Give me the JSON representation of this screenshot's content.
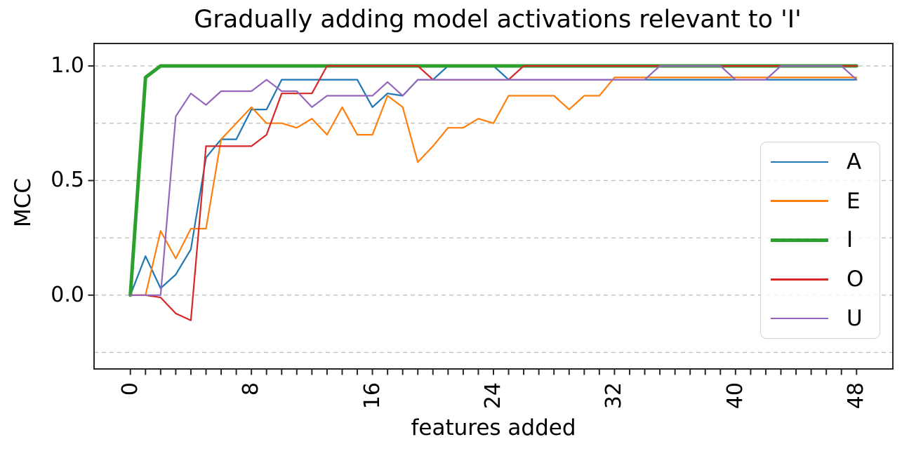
{
  "chart_data": {
    "type": "line",
    "title": "Gradually adding model activations relevant to 'I'",
    "xlabel": "features added",
    "ylabel": "MCC",
    "grid": "horizontal-dashed",
    "legend_position": "center-right",
    "xlim": [
      -2.4,
      50.4
    ],
    "ylim": [
      -0.322,
      1.098
    ],
    "xtick_labels": [
      "0",
      "8",
      "16",
      "24",
      "32",
      "40",
      "48"
    ],
    "xtick_values": [
      0,
      8,
      16,
      24,
      32,
      40,
      48
    ],
    "xticks_minor_every": 1,
    "ytick_labels": [
      "0.0",
      "0.5",
      "1.0"
    ],
    "ytick_values": [
      0,
      0.5,
      1.0
    ],
    "grid_values": [
      -0.25,
      0,
      0.25,
      0.5,
      0.75,
      1.0
    ],
    "x": [
      0,
      1,
      2,
      3,
      4,
      5,
      6,
      7,
      8,
      9,
      10,
      11,
      12,
      13,
      14,
      15,
      16,
      17,
      18,
      19,
      20,
      21,
      22,
      23,
      24,
      25,
      26,
      27,
      28,
      29,
      30,
      31,
      32,
      33,
      34,
      35,
      36,
      37,
      38,
      39,
      40,
      41,
      42,
      43,
      44,
      45,
      46,
      47,
      48
    ],
    "series": [
      {
        "name": "A",
        "color": "#1f77b4",
        "linewidth": 2.2,
        "values": [
          0.0,
          0.17,
          0.03,
          0.09,
          0.2,
          0.6,
          0.68,
          0.68,
          0.81,
          0.81,
          0.94,
          0.94,
          0.94,
          0.94,
          0.94,
          0.94,
          0.82,
          0.88,
          0.87,
          0.94,
          0.94,
          1.0,
          1.0,
          1.0,
          1.0,
          0.94,
          0.94,
          0.94,
          0.94,
          0.94,
          0.94,
          0.94,
          0.94,
          0.94,
          0.94,
          0.94,
          0.94,
          0.94,
          0.94,
          0.94,
          0.94,
          0.94,
          0.94,
          0.94,
          0.94,
          0.94,
          0.94,
          0.94,
          0.94
        ]
      },
      {
        "name": "E",
        "color": "#ff7f0e",
        "linewidth": 2.2,
        "values": [
          0.0,
          0.0,
          0.28,
          0.16,
          0.29,
          0.29,
          0.68,
          0.75,
          0.82,
          0.75,
          0.75,
          0.73,
          0.77,
          0.7,
          0.82,
          0.7,
          0.7,
          0.87,
          0.82,
          0.58,
          0.65,
          0.73,
          0.73,
          0.77,
          0.75,
          0.87,
          0.87,
          0.87,
          0.87,
          0.81,
          0.87,
          0.87,
          0.95,
          0.95,
          0.95,
          0.95,
          0.95,
          0.95,
          0.95,
          0.95,
          0.95,
          0.95,
          0.95,
          0.95,
          0.95,
          0.95,
          0.95,
          0.95,
          0.95
        ]
      },
      {
        "name": "I",
        "color": "#2ca02c",
        "linewidth": 5,
        "values": [
          0.0,
          0.95,
          1.0,
          1.0,
          1.0,
          1.0,
          1.0,
          1.0,
          1.0,
          1.0,
          1.0,
          1.0,
          1.0,
          1.0,
          1.0,
          1.0,
          1.0,
          1.0,
          1.0,
          1.0,
          1.0,
          1.0,
          1.0,
          1.0,
          1.0,
          1.0,
          1.0,
          1.0,
          1.0,
          1.0,
          1.0,
          1.0,
          1.0,
          1.0,
          1.0,
          1.0,
          1.0,
          1.0,
          1.0,
          1.0,
          1.0,
          1.0,
          1.0,
          1.0,
          1.0,
          1.0,
          1.0,
          1.0,
          1.0
        ]
      },
      {
        "name": "O",
        "color": "#d62728",
        "linewidth": 2.2,
        "values": [
          0.0,
          0.0,
          -0.01,
          -0.08,
          -0.11,
          0.65,
          0.65,
          0.65,
          0.65,
          0.7,
          0.88,
          0.88,
          0.88,
          1.0,
          1.0,
          1.0,
          1.0,
          1.0,
          1.0,
          1.0,
          0.94,
          0.94,
          0.94,
          0.94,
          0.94,
          0.94,
          1.0,
          1.0,
          1.0,
          1.0,
          1.0,
          1.0,
          1.0,
          1.0,
          1.0,
          1.0,
          1.0,
          1.0,
          1.0,
          1.0,
          1.0,
          1.0,
          1.0,
          1.0,
          1.0,
          1.0,
          1.0,
          1.0,
          1.0
        ]
      },
      {
        "name": "U",
        "color": "#9467bd",
        "linewidth": 2.2,
        "values": [
          0.0,
          0.0,
          0.0,
          0.78,
          0.88,
          0.83,
          0.89,
          0.89,
          0.89,
          0.94,
          0.89,
          0.89,
          0.82,
          0.87,
          0.87,
          0.87,
          0.87,
          0.93,
          0.87,
          0.94,
          0.94,
          0.94,
          0.94,
          0.94,
          0.94,
          0.94,
          0.94,
          0.94,
          0.94,
          0.94,
          0.94,
          0.94,
          0.94,
          0.94,
          0.94,
          1.0,
          1.0,
          1.0,
          1.0,
          1.0,
          0.94,
          0.94,
          0.94,
          1.0,
          1.0,
          1.0,
          1.0,
          1.0,
          0.94
        ]
      }
    ],
    "style": {
      "spine_color": "#262626",
      "grid_color": "#bbbbbb",
      "legend_border_color": "#d4d4d4"
    }
  }
}
